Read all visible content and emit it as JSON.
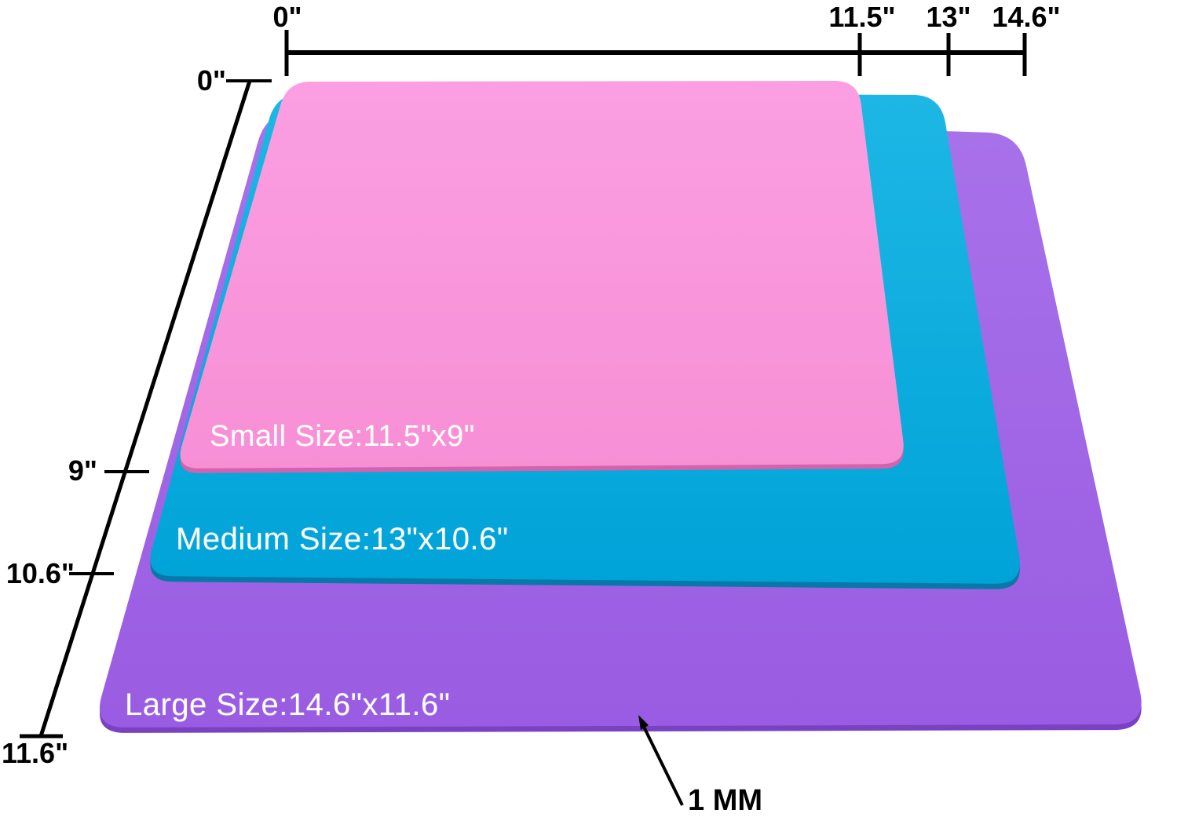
{
  "figure": {
    "top_ruler": {
      "ticks": [
        "0\"",
        "11.5\"",
        "13\"",
        "14.6\""
      ]
    },
    "left_ruler": {
      "ticks": [
        "0\"",
        "9\"",
        "10.6\"",
        "11.6\""
      ]
    },
    "mats": [
      {
        "id": "small",
        "label": "Small Size:11.5\"x9\"",
        "color_top": "#fb9fe2",
        "color_bottom": "#f78fd5",
        "edge_color": "#d463ae"
      },
      {
        "id": "medium",
        "label": "Medium Size:13\"x10.6\"",
        "color_top": "#1eb7e5",
        "color_bottom": "#00a3d8",
        "edge_color": "#0878a8"
      },
      {
        "id": "large",
        "label": "Large Size:14.6\"x11.6\"",
        "color_top": "#a872ea",
        "color_bottom": "#9a5ce2",
        "edge_color": "#7a41c2"
      }
    ],
    "thickness_label": "1 MM",
    "annotation_color": "#000000",
    "mat_label_color": "#ffffff"
  }
}
